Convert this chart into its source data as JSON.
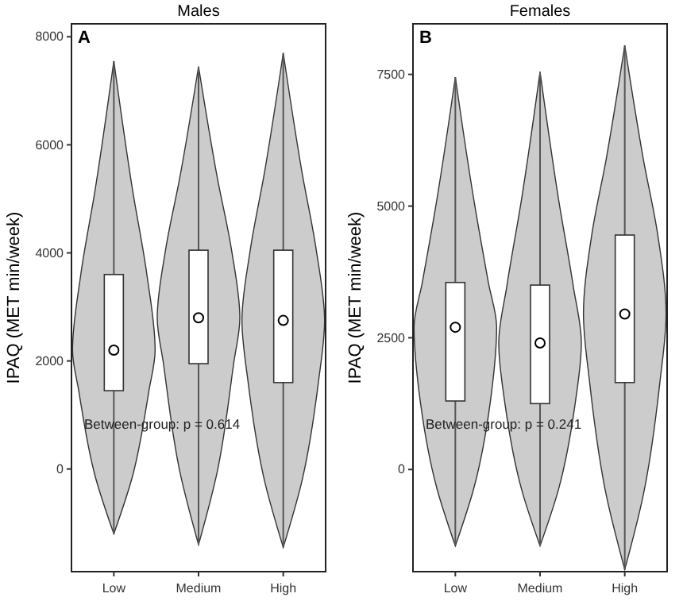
{
  "chart_data": [
    {
      "type": "box",
      "title": "Males",
      "ylabel": "IPAQ (MET min/week)",
      "categories": [
        "Low",
        "Medium",
        "High"
      ],
      "ylim": [
        -1900,
        8240
      ],
      "yticks": [
        0,
        2000,
        4000,
        6000,
        8000
      ],
      "annotations": [
        "A",
        "Between-group: p = 0.614"
      ],
      "boxes": [
        {
          "low": -1200,
          "q1": 1450,
          "median": 2200,
          "q3": 3600,
          "high": 7550
        },
        {
          "low": -1400,
          "q1": 1950,
          "median": 2800,
          "q3": 4050,
          "high": 7450
        },
        {
          "low": -1450,
          "q1": 1600,
          "median": 2750,
          "q3": 4050,
          "high": 7700
        }
      ]
    },
    {
      "type": "box",
      "title": "Females",
      "ylabel": "IPAQ (MET min/week)",
      "categories": [
        "Low",
        "Medium",
        "High"
      ],
      "ylim": [
        -1940,
        8460
      ],
      "yticks": [
        0,
        2500,
        5000,
        7500
      ],
      "annotations": [
        "B",
        "Between-group: p = 0.241"
      ],
      "boxes": [
        {
          "low": -1450,
          "q1": 1300,
          "median": 2700,
          "q3": 3550,
          "high": 7450
        },
        {
          "low": -1450,
          "q1": 1250,
          "median": 2400,
          "q3": 3500,
          "high": 7550
        },
        {
          "low": -1900,
          "q1": 1650,
          "median": 2950,
          "q3": 4450,
          "high": 8050
        }
      ]
    }
  ]
}
